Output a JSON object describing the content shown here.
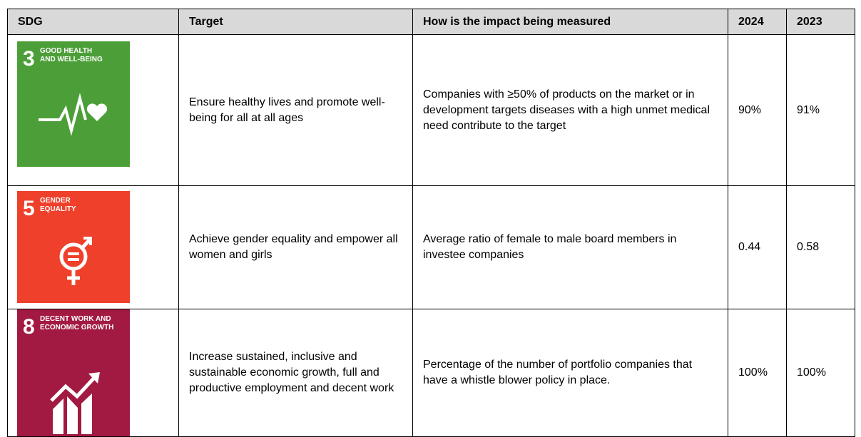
{
  "table": {
    "header": [
      "SDG",
      "Target",
      "How is the impact being measured",
      "2024",
      "2023"
    ],
    "rows": [
      {
        "icon": {
          "number": "3",
          "label": [
            "GOOD HEALTH",
            "AND WELL-BEING"
          ]
        },
        "cells": [
          "Ensure healthy lives and promote well-being for all at all ages",
          "Companies with ≥50% of products on the market or in development targets diseases with a high unmet medical need contribute to the target",
          "90%",
          "91%"
        ]
      },
      {
        "icon": {
          "number": "5",
          "label": [
            "GENDER",
            "EQUALITY"
          ]
        },
        "cells": [
          "Achieve gender equality and empower all women and girls",
          "Average ratio of female to male board members in investee companies",
          "0.44",
          "0.58"
        ]
      },
      {
        "icon": {
          "number": "8",
          "label": [
            "DECENT WORK AND",
            "ECONOMIC GROWTH"
          ]
        },
        "cells": [
          "Increase sustained, inclusive and sustainable economic growth, full and productive employment and decent work",
          "Percentage of the number of portfolio companies that have a whistle blower policy in place.",
          "100%",
          "100%"
        ]
      }
    ]
  }
}
